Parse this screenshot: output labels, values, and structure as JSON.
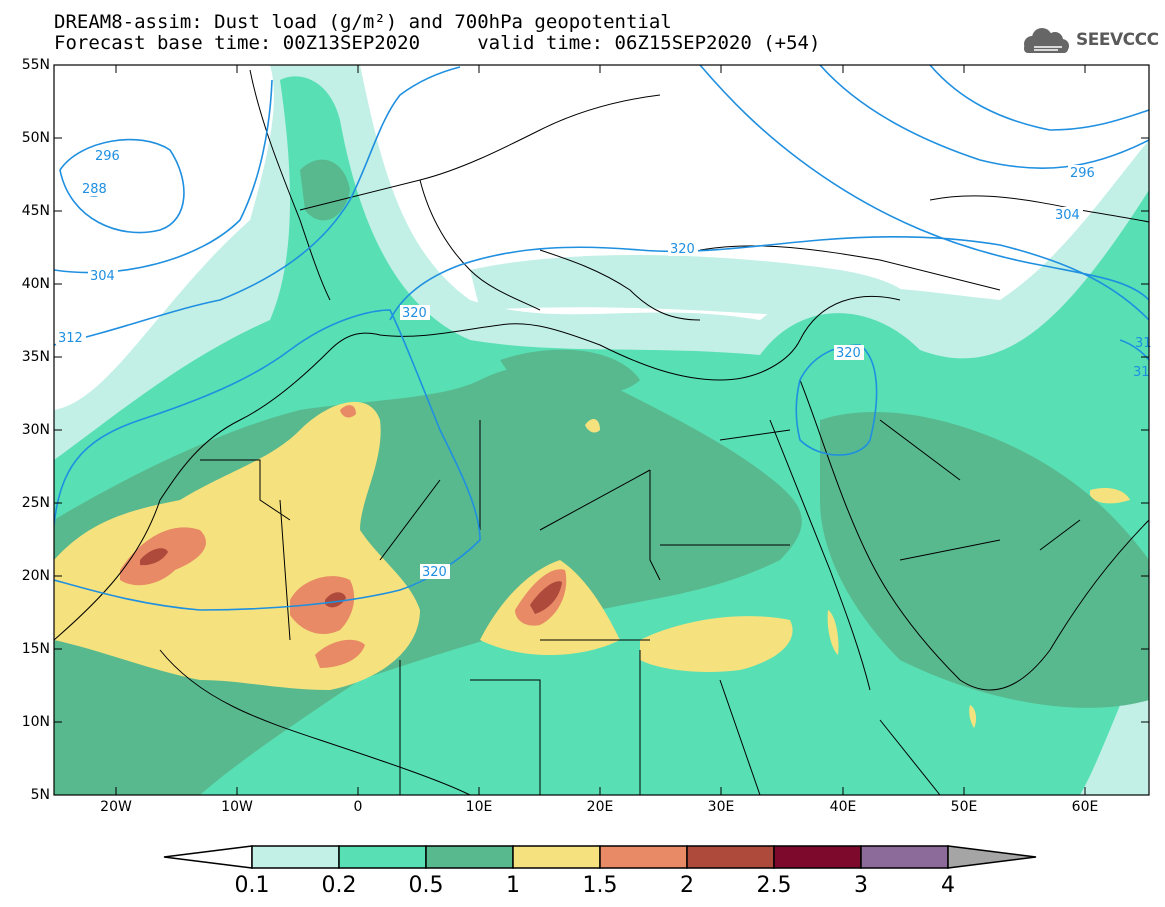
{
  "header": {
    "line1": "DREAM8-assim: Dust load (g/m²) and 700hPa geopotential",
    "line2": "Forecast base time: 00Z13SEP2020     valid time: 06Z15SEP2020 (+54)"
  },
  "logo": {
    "text": "SEEVCCC",
    "icon": "cloud-logo-icon"
  },
  "axes": {
    "lat_labels": [
      "55N",
      "50N",
      "45N",
      "40N",
      "35N",
      "30N",
      "25N",
      "20N",
      "15N",
      "10N",
      "5N"
    ],
    "lon_labels": [
      "20W",
      "10W",
      "0",
      "10E",
      "20E",
      "30E",
      "40E",
      "50E",
      "60E"
    ]
  },
  "contours": {
    "labels": [
      "296",
      "288",
      "304",
      "312",
      "320",
      "320",
      "320",
      "320",
      "296",
      "304",
      "31",
      "31"
    ]
  },
  "colorbar": {
    "labels": [
      "0.1",
      "0.2",
      "0.5",
      "1",
      "1.5",
      "2",
      "2.5",
      "3",
      "4"
    ],
    "colors": [
      "#c2f0e6",
      "#58dfb4",
      "#59b98e",
      "#f5e27e",
      "#e88a66",
      "#ad4a3c",
      "#7d0a2c",
      "#8c6a9a",
      "#a5a5a5"
    ],
    "under_color": "#ffffff"
  },
  "colors": {
    "contour": "#1f8fe0",
    "land_border": "#000000"
  }
}
